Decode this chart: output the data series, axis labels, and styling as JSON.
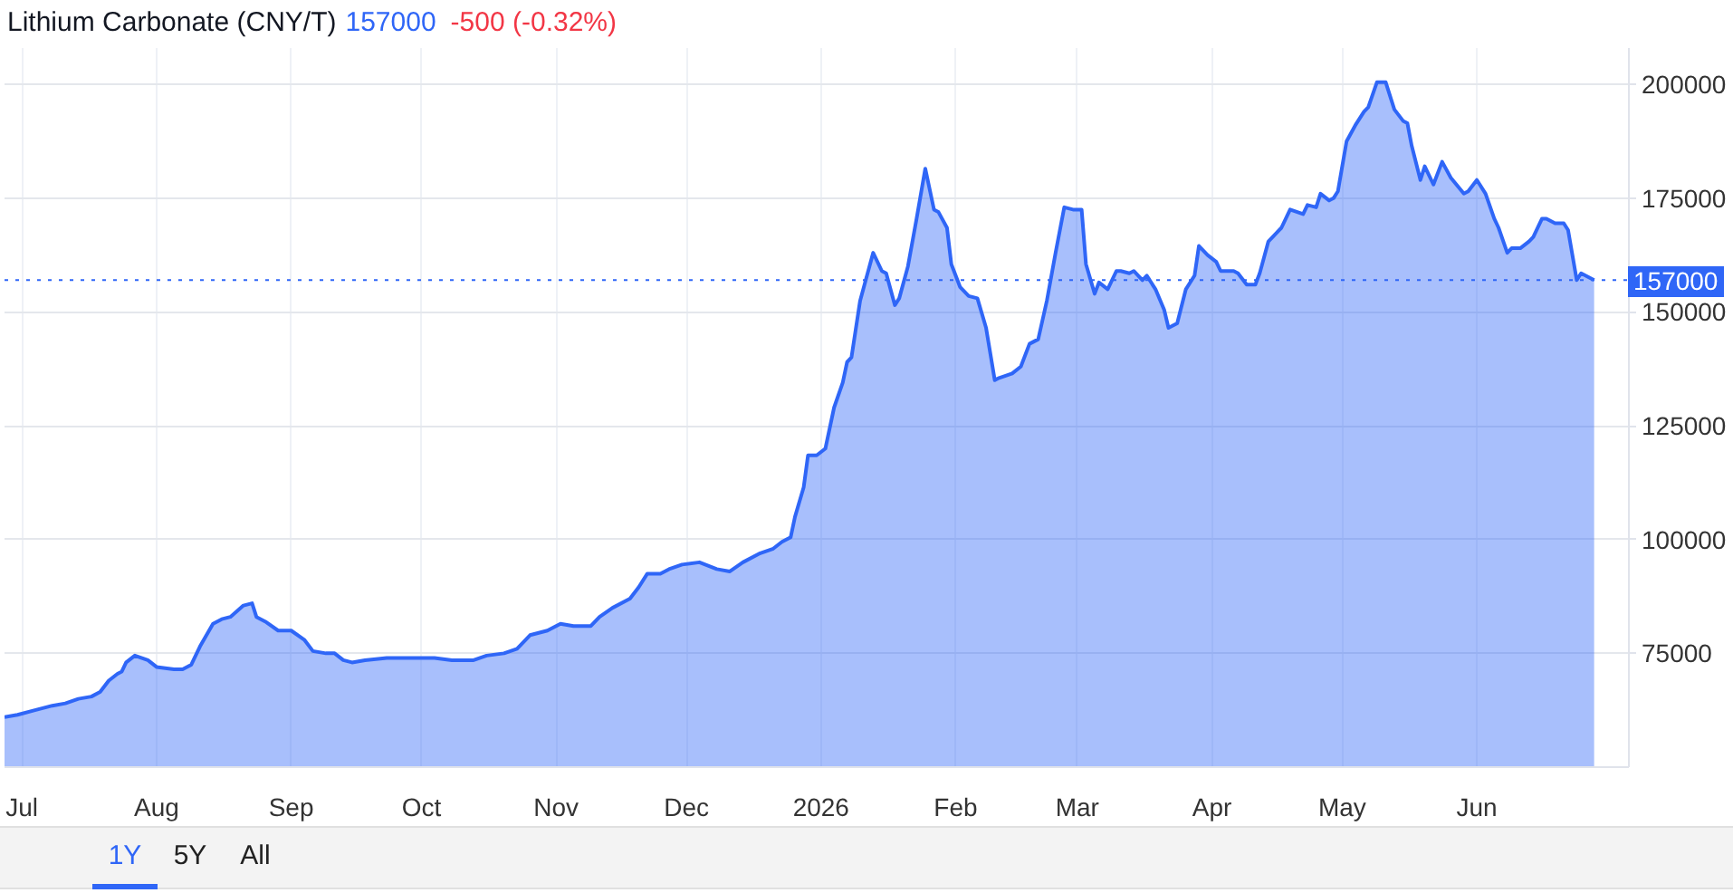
{
  "chart_data": {
    "type": "area",
    "title": "Lithium Carbonate (CNY/T)",
    "annotations": [
      "157000",
      "-500 (-0.32%)",
      "1Y",
      "5Y",
      "All"
    ],
    "color": "#2f66f7",
    "grid": true,
    "x": [
      "2025-06-27",
      "2025-06-30",
      "2025-07-04",
      "2025-07-08",
      "2025-07-11",
      "2025-07-14",
      "2025-07-17",
      "2025-07-19",
      "2025-07-21",
      "2025-07-23",
      "2025-07-24",
      "2025-07-25",
      "2025-07-27",
      "2025-07-30",
      "2025-08-01",
      "2025-08-05",
      "2025-08-07",
      "2025-08-09",
      "2025-08-11",
      "2025-08-14",
      "2025-08-16",
      "2025-08-18",
      "2025-08-21",
      "2025-08-23",
      "2025-08-24",
      "2025-08-26",
      "2025-08-29",
      "2025-09-01",
      "2025-09-04",
      "2025-09-06",
      "2025-09-09",
      "2025-09-11",
      "2025-09-13",
      "2025-09-15",
      "2025-09-18",
      "2025-09-23",
      "2025-09-28",
      "2025-10-04",
      "2025-10-08",
      "2025-10-13",
      "2025-10-16",
      "2025-10-20",
      "2025-10-23",
      "2025-10-26",
      "2025-10-30",
      "2025-11-02",
      "2025-11-05",
      "2025-11-09",
      "2025-11-11",
      "2025-11-14",
      "2025-11-18",
      "2025-11-20",
      "2025-11-22",
      "2025-11-25",
      "2025-11-27",
      "2025-11-30",
      "2025-12-04",
      "2025-12-08",
      "2025-12-11",
      "2025-12-14",
      "2025-12-18",
      "2025-12-21",
      "2025-12-23",
      "2025-12-25",
      "2025-12-26",
      "2025-12-28",
      "2025-12-29",
      "2025-12-31",
      "2026-01-02",
      "2026-01-04",
      "2026-01-06",
      "2026-01-07",
      "2026-01-08",
      "2026-01-10",
      "2026-01-12",
      "2026-01-13",
      "2026-01-15",
      "2026-01-16",
      "2026-01-18",
      "2026-01-19",
      "2026-01-21",
      "2026-01-23",
      "2026-01-25",
      "2026-01-27",
      "2026-01-28",
      "2026-01-30",
      "2026-01-31",
      "2026-02-02",
      "2026-02-04",
      "2026-02-06",
      "2026-02-08",
      "2026-02-10",
      "2026-02-11",
      "2026-02-14",
      "2026-02-16",
      "2026-02-18",
      "2026-02-20",
      "2026-02-22",
      "2026-02-24",
      "2026-02-26",
      "2026-02-28",
      "2026-03-02",
      "2026-03-03",
      "2026-03-05",
      "2026-03-06",
      "2026-03-08",
      "2026-03-10",
      "2026-03-11",
      "2026-03-13",
      "2026-03-14",
      "2026-03-16",
      "2026-03-17",
      "2026-03-19",
      "2026-03-21",
      "2026-03-22",
      "2026-03-24",
      "2026-03-26",
      "2026-03-28",
      "2026-03-29",
      "2026-03-31",
      "2026-04-02",
      "2026-04-03",
      "2026-04-06",
      "2026-04-07",
      "2026-04-09",
      "2026-04-11",
      "2026-04-12",
      "2026-04-14",
      "2026-04-17",
      "2026-04-19",
      "2026-04-22",
      "2026-04-23",
      "2026-04-25",
      "2026-04-26",
      "2026-04-28",
      "2026-04-29",
      "2026-04-30",
      "2026-05-02",
      "2026-05-04",
      "2026-05-06",
      "2026-05-07",
      "2026-05-09",
      "2026-05-11",
      "2026-05-13",
      "2026-05-15",
      "2026-05-16",
      "2026-05-17",
      "2026-05-19",
      "2026-05-20",
      "2026-05-22",
      "2026-05-24",
      "2026-05-26",
      "2026-05-29",
      "2026-05-30",
      "2026-06-01",
      "2026-06-03",
      "2026-06-05",
      "2026-06-06",
      "2026-06-08",
      "2026-06-09",
      "2026-06-11",
      "2026-06-13",
      "2026-06-14",
      "2026-06-16",
      "2026-06-17",
      "2026-06-19",
      "2026-06-21",
      "2026-06-22",
      "2026-06-24",
      "2026-06-25",
      "2026-06-27",
      "2026-06-28"
    ],
    "values": [
      61000,
      61500,
      62500,
      63500,
      64000,
      65000,
      65500,
      66500,
      69000,
      70500,
      71000,
      73000,
      74500,
      73500,
      72000,
      71500,
      71500,
      72500,
      76500,
      81500,
      82500,
      83000,
      85500,
      86000,
      83000,
      82000,
      80000,
      80000,
      78000,
      75500,
      75000,
      75000,
      73500,
      73000,
      73500,
      74000,
      74000,
      74000,
      73500,
      73500,
      74500,
      75000,
      76000,
      79000,
      80000,
      81500,
      81000,
      81000,
      83000,
      85000,
      87000,
      89500,
      92500,
      92500,
      93500,
      94500,
      95000,
      93500,
      93000,
      95000,
      97000,
      98000,
      99500,
      100500,
      105000,
      111500,
      118500,
      118500,
      120000,
      129000,
      134500,
      139000,
      140000,
      152500,
      159500,
      163000,
      159000,
      158500,
      151500,
      153000,
      160000,
      170500,
      181500,
      172500,
      172000,
      168500,
      160500,
      155500,
      153500,
      153000,
      146500,
      135000,
      135500,
      136500,
      138000,
      143000,
      144000,
      152500,
      163000,
      173000,
      172500,
      172500,
      160500,
      154000,
      156500,
      155000,
      159000,
      159000,
      158500,
      159000,
      157000,
      158000,
      155000,
      150500,
      146500,
      147500,
      155000,
      158000,
      164500,
      162500,
      161000,
      159000,
      159000,
      158500,
      156000,
      156000,
      158500,
      165500,
      168500,
      172500,
      171500,
      173500,
      173000,
      176000,
      174500,
      175000,
      176500,
      187500,
      191000,
      194000,
      195000,
      200500,
      200500,
      194500,
      192000,
      191500,
      186500,
      179000,
      182000,
      178000,
      183000,
      179500,
      176000,
      176500,
      179000,
      176000,
      170500,
      168500,
      163000,
      164000,
      164000,
      165500,
      166500,
      170500,
      170500,
      169500,
      169500,
      168000,
      157000,
      158500,
      157500,
      157000
    ],
    "xlim": [
      "2025-06-27",
      "2026-07-06"
    ],
    "xticks": [
      {
        "value": "2025-07-01",
        "label": "Jul"
      },
      {
        "value": "2025-08-01",
        "label": "Aug"
      },
      {
        "value": "2025-09-01",
        "label": "Sep"
      },
      {
        "value": "2025-10-01",
        "label": "Oct"
      },
      {
        "value": "2025-11-01",
        "label": "Nov"
      },
      {
        "value": "2025-12-01",
        "label": "Dec"
      },
      {
        "value": "2026-01-01",
        "label": "2026"
      },
      {
        "value": "2026-02-01",
        "label": "Feb"
      },
      {
        "value": "2026-03-01",
        "label": "Mar"
      },
      {
        "value": "2026-04-01",
        "label": "Apr"
      },
      {
        "value": "2026-05-01",
        "label": "May"
      },
      {
        "value": "2026-06-01",
        "label": "Jun"
      }
    ],
    "ylim": [
      50000,
      208000
    ],
    "yticks": [
      75000,
      100000,
      125000,
      150000,
      175000,
      200000
    ],
    "ref_lines": [
      {
        "axis": "y",
        "value": 157000,
        "label": "157000",
        "color": "#2f66f7",
        "line_style": "dotted"
      }
    ]
  }
}
